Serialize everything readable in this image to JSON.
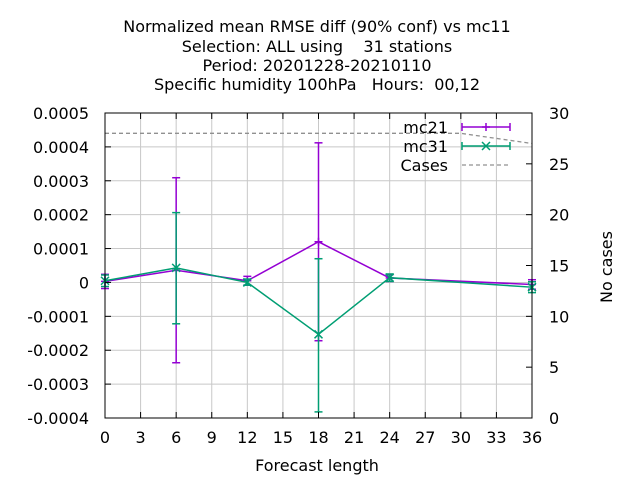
{
  "chart_data": {
    "type": "line",
    "title_lines": [
      "Normalized mean RMSE diff (90% conf) vs mc11",
      "Selection: ALL using    31 stations",
      "Period: 20201228-20210110",
      "Specific humidity 100hPa   Hours:  00,12"
    ],
    "xlabel": "Forecast length",
    "ylabel": "",
    "y2label": "No cases",
    "xlim": [
      0,
      36
    ],
    "ylim": [
      -0.0004,
      0.0005
    ],
    "y2lim": [
      0,
      30
    ],
    "x_ticks": [
      0,
      3,
      6,
      9,
      12,
      15,
      18,
      21,
      24,
      27,
      30,
      33,
      36
    ],
    "y_ticks": [
      -0.0004,
      -0.0003,
      -0.0002,
      -0.0001,
      0,
      0.0001,
      0.0002,
      0.0003,
      0.0004,
      0.0005
    ],
    "y_tick_labels": [
      "-0.0004",
      "-0.0003",
      "-0.0002",
      "-0.0001",
      "0",
      "0.0001",
      "0.0002",
      "0.0003",
      "0.0004",
      "0.0005"
    ],
    "y2_ticks": [
      0,
      5,
      10,
      15,
      20,
      25,
      30
    ],
    "grid": true,
    "legend_position": "top-right",
    "series": [
      {
        "name": "mc21",
        "color": "#9400d3",
        "marker": "plus",
        "x": [
          0,
          6,
          12,
          18,
          24,
          36
        ],
        "y": [
          3e-06,
          3.6e-05,
          5e-06,
          0.00012,
          1.3e-05,
          -6e-06
        ],
        "err_low": [
          -1.8e-05,
          -0.000237,
          -8e-06,
          -0.000172,
          3e-06,
          -2e-05
        ],
        "err_high": [
          2.4e-05,
          0.000309,
          1.8e-05,
          0.000412,
          2.3e-05,
          8e-06
        ]
      },
      {
        "name": "mc31",
        "color": "#009e73",
        "marker": "x",
        "x": [
          0,
          6,
          12,
          18,
          24,
          36
        ],
        "y": [
          5e-06,
          4.3e-05,
          0.0,
          -0.000153,
          1.4e-05,
          -1.4e-05
        ],
        "err_low": [
          -1.2e-05,
          -0.000122,
          -8e-06,
          -0.000382,
          3e-06,
          -3e-05
        ],
        "err_high": [
          2.2e-05,
          0.000206,
          1e-05,
          7e-05,
          2.5e-05,
          2e-06
        ]
      },
      {
        "name": "Cases",
        "color": "#909090",
        "style": "dashed",
        "axis": "y2",
        "x": [
          0,
          6,
          12,
          18,
          24,
          30,
          36
        ],
        "y": [
          28,
          28,
          28,
          28,
          28,
          28,
          27
        ]
      }
    ]
  }
}
